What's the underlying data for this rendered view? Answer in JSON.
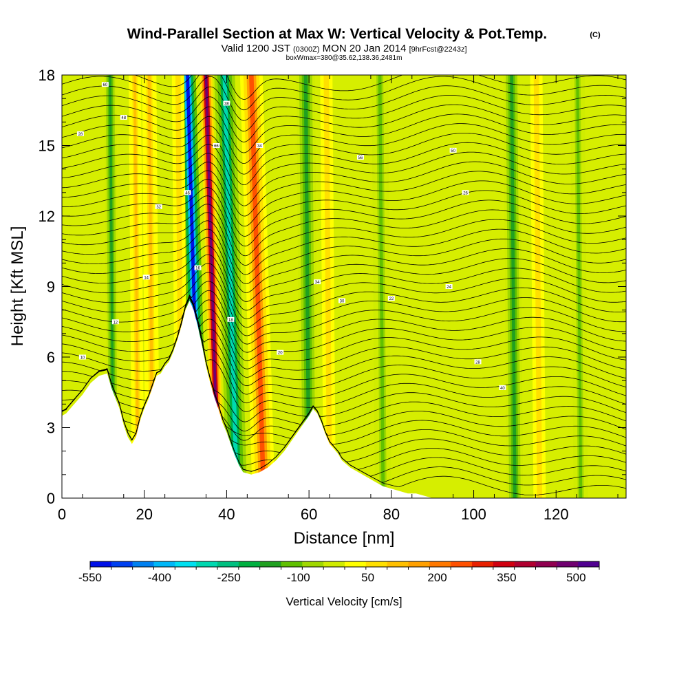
{
  "chart_data": {
    "type": "heatmap",
    "title": "Wind-Parallel Section at Max W: Vertical Velocity & Pot.Temp.",
    "title_mark": "(C)",
    "subtitle_main": "Valid 1200 JST",
    "subtitle_utc": "(0300Z)",
    "subtitle_date": "MON 20 Jan 2014",
    "subtitle_fcst": "[9hrFcst@2243z]",
    "subtitle2": "boxWmax=380@35.62,138.36,2481m",
    "xlabel": "Distance [nm]",
    "ylabel": "Height [Kft MSL]",
    "xlim": [
      0,
      137
    ],
    "ylim": [
      0,
      18
    ],
    "xticks": [
      "0",
      "20",
      "40",
      "60",
      "80",
      "100",
      "120"
    ],
    "yticks": [
      "0",
      "3",
      "6",
      "9",
      "12",
      "15",
      "18"
    ],
    "grid": false,
    "colorbar": {
      "label": "Vertical Velocity [cm/s]",
      "placement": "bottom",
      "tick_labels": [
        "-550",
        "-400",
        "-250",
        "-100",
        "50",
        "200",
        "350",
        "500"
      ],
      "tick_values": [
        -550,
        -400,
        -250,
        -100,
        50,
        200,
        350,
        500
      ],
      "range": [
        -550,
        550
      ],
      "colors": [
        "#0010e8",
        "#0040f0",
        "#0080f0",
        "#00b8f8",
        "#00e0f0",
        "#00d8b0",
        "#00c080",
        "#00b040",
        "#20a020",
        "#60c000",
        "#a0d800",
        "#d0ec00",
        "#ffff00",
        "#ffe000",
        "#ffc000",
        "#ffa000",
        "#ff7800",
        "#ff5000",
        "#e82000",
        "#d00010",
        "#b00030",
        "#900050",
        "#700070",
        "#500090"
      ]
    },
    "vertical_velocity_bands": [
      {
        "x": 33.5,
        "w": 4.0,
        "value": -550
      },
      {
        "x": 38.0,
        "w": 3.0,
        "value": 500
      },
      {
        "x": 42.5,
        "w": 5.0,
        "value": -300
      },
      {
        "x": 49.0,
        "w": 5.5,
        "value": 250
      },
      {
        "x": 22.0,
        "w": 3.5,
        "value": 100
      },
      {
        "x": 29.0,
        "w": 3.0,
        "value": 80
      },
      {
        "x": 12.5,
        "w": 3.0,
        "value": -150
      },
      {
        "x": 18.5,
        "w": 3.0,
        "value": 100
      },
      {
        "x": 60.0,
        "w": 4.5,
        "value": -150
      },
      {
        "x": 65.0,
        "w": 3.0,
        "value": 80
      },
      {
        "x": 78.0,
        "w": 4.0,
        "value": -120
      },
      {
        "x": 110.0,
        "w": 4.0,
        "value": -150
      },
      {
        "x": 116.0,
        "w": 3.0,
        "value": 80
      },
      {
        "x": 126.0,
        "w": 3.5,
        "value": -100
      }
    ],
    "terrain": {
      "x": [
        0,
        1,
        3,
        5,
        7,
        9,
        11,
        12,
        14,
        15,
        16,
        17,
        18,
        19,
        20,
        21,
        22,
        23,
        24,
        25,
        26,
        27,
        28,
        29,
        30,
        31,
        32,
        33,
        34,
        35,
        36,
        37,
        38,
        39,
        40,
        41,
        42,
        43,
        44,
        46,
        48,
        50,
        52,
        54,
        56,
        58,
        60,
        61,
        62,
        63,
        64,
        65,
        66,
        67,
        68,
        70,
        72,
        74,
        76,
        78,
        80,
        82,
        84,
        86,
        88,
        90,
        137
      ],
      "height": [
        3.5,
        3.6,
        4.0,
        4.4,
        4.9,
        5.2,
        5.3,
        4.7,
        3.8,
        3.1,
        2.6,
        2.3,
        2.6,
        3.3,
        3.8,
        4.2,
        4.7,
        5.2,
        5.3,
        5.6,
        5.8,
        6.2,
        6.7,
        7.3,
        8.0,
        8.4,
        8.0,
        7.3,
        6.5,
        5.6,
        4.9,
        4.3,
        3.8,
        3.2,
        2.8,
        2.3,
        1.8,
        1.4,
        1.1,
        1.0,
        1.1,
        1.3,
        1.6,
        2.0,
        2.5,
        3.0,
        3.5,
        3.8,
        3.6,
        3.2,
        2.7,
        2.3,
        2.1,
        1.9,
        1.6,
        1.3,
        1.1,
        0.9,
        0.7,
        0.5,
        0.4,
        0.3,
        0.2,
        0.2,
        0.1,
        0.0,
        0.0
      ]
    },
    "theta_contour_labels": [
      "60",
      "48",
      "28",
      "66",
      "38",
      "34",
      "56",
      "50",
      "26",
      "46",
      "32",
      "34",
      "16",
      "14",
      "10",
      "12",
      "18",
      "20",
      "22",
      "30",
      "24",
      "28",
      "40"
    ]
  }
}
